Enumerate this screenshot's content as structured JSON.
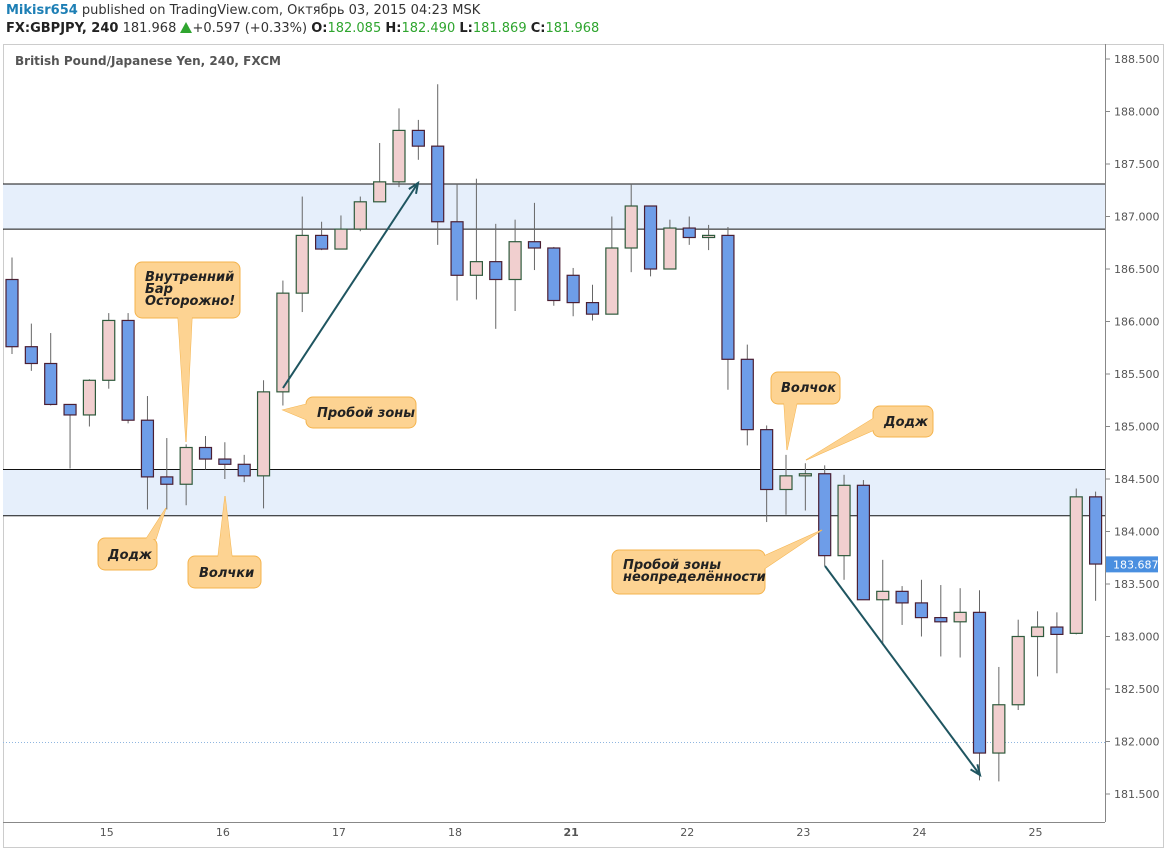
{
  "header": {
    "user": "Mikisr654",
    "published": "published on TradingView.com, Октябрь 03, 2015 04:23 MSK",
    "symbol": "FX:GBPJPY, 240",
    "last": "181.968",
    "change": "+0.597 (+0.33%)",
    "o_label": "O:",
    "o": "182.085",
    "h_label": "H:",
    "h": "182.490",
    "l_label": "L:",
    "l": "181.869",
    "c_label": "C:",
    "c": "181.968"
  },
  "chart_data": {
    "type": "candlestick",
    "title": "British Pound/Japanese Yen, 240, FXCM",
    "ylim": [
      181.2,
      188.65
    ],
    "y_ticks": [
      "188.500",
      "188.000",
      "187.500",
      "187.000",
      "186.500",
      "186.000",
      "185.500",
      "185.000",
      "184.500",
      "184.000",
      "183.500",
      "183.000",
      "182.500",
      "182.000",
      "181.500"
    ],
    "x_ticks": [
      {
        "label": "15",
        "bar": 5
      },
      {
        "label": "16",
        "bar": 11
      },
      {
        "label": "17",
        "bar": 17
      },
      {
        "label": "18",
        "bar": 23
      },
      {
        "label": "21",
        "bar": 29
      },
      {
        "label": "22",
        "bar": 35
      },
      {
        "label": "23",
        "bar": 41
      },
      {
        "label": "24",
        "bar": 47
      },
      {
        "label": "25",
        "bar": 53
      }
    ],
    "current_price": "183.687",
    "dotted_level": 181.99,
    "colors": {
      "up": "#f1cfcf",
      "up_border": "#2f5a3c",
      "down": "#6e9de8",
      "down_border": "#4a1f33",
      "zone": "#e6effb",
      "accent": "#4a8fe0",
      "callout": "#fdd392",
      "callout_border": "#f4b34c",
      "arrow": "#1f5560"
    },
    "zones": [
      [
        186.88,
        187.31
      ],
      [
        184.15,
        184.59
      ]
    ],
    "ohlc": [
      [
        186.4,
        186.61,
        185.69,
        185.76
      ],
      [
        185.76,
        185.98,
        185.53,
        185.6
      ],
      [
        185.6,
        185.89,
        185.2,
        185.21
      ],
      [
        185.21,
        185.21,
        184.6,
        185.11
      ],
      [
        185.11,
        185.45,
        185.0,
        185.44
      ],
      [
        185.44,
        186.08,
        185.36,
        186.01
      ],
      [
        186.01,
        186.08,
        185.03,
        185.06
      ],
      [
        185.06,
        185.29,
        184.21,
        184.52
      ],
      [
        184.52,
        184.89,
        184.21,
        184.45
      ],
      [
        184.45,
        184.83,
        184.25,
        184.8
      ],
      [
        184.8,
        184.91,
        184.59,
        184.69
      ],
      [
        184.69,
        184.85,
        184.5,
        184.64
      ],
      [
        184.64,
        184.73,
        184.47,
        184.53
      ],
      [
        184.53,
        185.44,
        184.22,
        185.33
      ],
      [
        185.33,
        186.39,
        185.2,
        186.27
      ],
      [
        186.27,
        187.19,
        186.09,
        186.82
      ],
      [
        186.82,
        186.95,
        186.68,
        186.69
      ],
      [
        186.69,
        187.01,
        186.69,
        186.88
      ],
      [
        186.88,
        187.19,
        186.86,
        187.14
      ],
      [
        187.14,
        187.7,
        187.14,
        187.33
      ],
      [
        187.33,
        188.03,
        187.28,
        187.82
      ],
      [
        187.82,
        187.92,
        187.54,
        187.67
      ],
      [
        187.67,
        188.26,
        186.73,
        186.95
      ],
      [
        186.95,
        187.31,
        186.2,
        186.44
      ],
      [
        186.44,
        187.36,
        186.21,
        186.57
      ],
      [
        186.57,
        186.93,
        185.93,
        186.4
      ],
      [
        186.4,
        186.97,
        186.1,
        186.76
      ],
      [
        186.76,
        187.13,
        186.49,
        186.7
      ],
      [
        186.7,
        186.71,
        186.15,
        186.2
      ],
      [
        186.44,
        186.51,
        186.05,
        186.18
      ],
      [
        186.18,
        186.35,
        186.01,
        186.07
      ],
      [
        186.07,
        187.0,
        186.07,
        186.7
      ],
      [
        186.7,
        187.31,
        186.47,
        187.1
      ],
      [
        187.1,
        187.1,
        186.43,
        186.5
      ],
      [
        186.5,
        186.97,
        186.5,
        186.89
      ],
      [
        186.89,
        187.0,
        186.73,
        186.8
      ],
      [
        186.8,
        186.92,
        186.68,
        186.82
      ],
      [
        186.82,
        186.9,
        185.35,
        185.64
      ],
      [
        185.64,
        185.78,
        184.82,
        184.97
      ],
      [
        184.97,
        185.01,
        184.09,
        184.4
      ],
      [
        184.4,
        184.73,
        184.16,
        184.53
      ],
      [
        184.53,
        184.65,
        184.2,
        184.55
      ],
      [
        184.55,
        184.63,
        183.67,
        183.77
      ],
      [
        183.77,
        184.54,
        183.54,
        184.44
      ],
      [
        184.44,
        184.49,
        183.35,
        183.35
      ],
      [
        183.35,
        183.73,
        182.92,
        183.43
      ],
      [
        183.43,
        183.48,
        183.11,
        183.32
      ],
      [
        183.32,
        183.54,
        183.0,
        183.18
      ],
      [
        183.18,
        183.49,
        182.81,
        183.14
      ],
      [
        183.14,
        183.46,
        182.8,
        183.23
      ],
      [
        183.23,
        183.44,
        181.63,
        181.89
      ],
      [
        181.89,
        182.71,
        181.62,
        182.35
      ],
      [
        182.35,
        183.16,
        182.3,
        183.0
      ],
      [
        183.0,
        183.24,
        182.62,
        183.09
      ],
      [
        183.09,
        183.23,
        182.65,
        183.02
      ],
      [
        183.03,
        184.41,
        183.02,
        184.33
      ],
      [
        184.33,
        184.38,
        183.34,
        183.69
      ]
    ],
    "annotations": [
      {
        "lines": [
          "Внутренний",
          "Бар",
          "Осторожно!"
        ]
      },
      {
        "lines": [
          "Пробой зоны"
        ]
      },
      {
        "lines": [
          "Додж"
        ]
      },
      {
        "lines": [
          "Волчки"
        ]
      },
      {
        "lines": [
          "Волчок"
        ]
      },
      {
        "lines": [
          "Додж"
        ]
      },
      {
        "lines": [
          "Пробой зоны",
          "неопределённости"
        ]
      }
    ]
  }
}
